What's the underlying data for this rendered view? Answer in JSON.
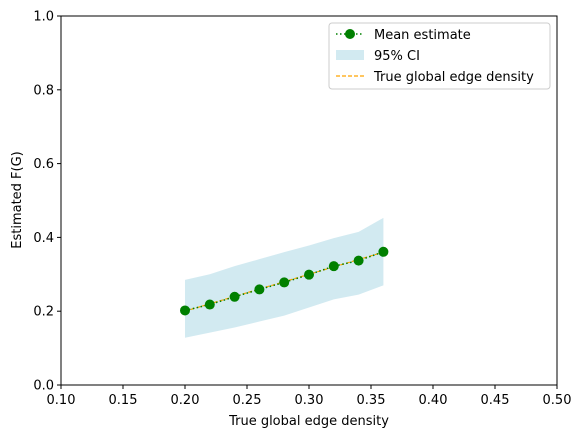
{
  "chart_data": {
    "type": "line",
    "title": "",
    "xlabel": "True global edge density",
    "ylabel": "Estimated F(G)",
    "xlim": [
      0.1,
      0.5
    ],
    "ylim": [
      0.0,
      1.0
    ],
    "xticks": [
      "0.10",
      "0.15",
      "0.20",
      "0.25",
      "0.30",
      "0.35",
      "0.40",
      "0.45",
      "0.50"
    ],
    "xtick_values": [
      0.1,
      0.15,
      0.2,
      0.25,
      0.3,
      0.35,
      0.4,
      0.45,
      0.5
    ],
    "yticks": [
      "0.0",
      "0.2",
      "0.4",
      "0.6",
      "0.8",
      "1.0"
    ],
    "ytick_values": [
      0.0,
      0.2,
      0.4,
      0.6,
      0.8,
      1.0
    ],
    "grid": false,
    "legend_position": "top-right",
    "x": [
      0.2,
      0.22,
      0.24,
      0.26,
      0.28,
      0.3,
      0.32,
      0.34,
      0.36
    ],
    "series": [
      {
        "name": "Mean estimate",
        "style": "dotted-line-with-circle-markers",
        "color": "#008000",
        "values": [
          0.202,
          0.218,
          0.239,
          0.259,
          0.278,
          0.299,
          0.322,
          0.337,
          0.361
        ]
      },
      {
        "name": "95% CI",
        "style": "band",
        "color": "#add8e6",
        "lower": [
          0.128,
          0.142,
          0.156,
          0.172,
          0.188,
          0.21,
          0.232,
          0.245,
          0.27
        ],
        "upper": [
          0.285,
          0.3,
          0.322,
          0.341,
          0.36,
          0.378,
          0.398,
          0.415,
          0.453
        ]
      },
      {
        "name": "True global edge density",
        "style": "dashed-line",
        "color": "#ffa500",
        "values": [
          0.2,
          0.22,
          0.24,
          0.26,
          0.28,
          0.3,
          0.32,
          0.34,
          0.36
        ]
      }
    ]
  }
}
